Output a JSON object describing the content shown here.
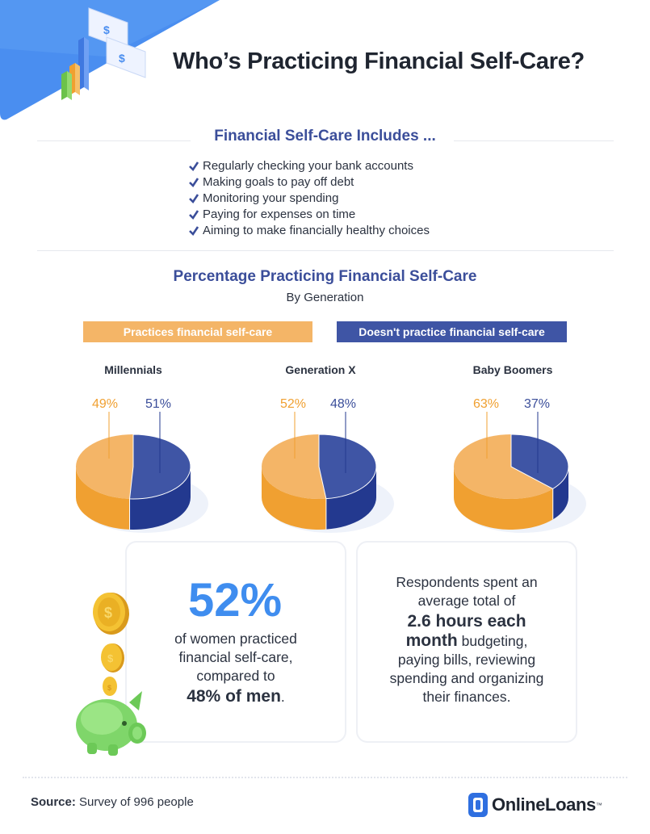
{
  "header": {
    "title": "Who’s Practicing Financial Self-Care?"
  },
  "includes": {
    "heading": "Financial Self-Care Includes ...",
    "items": [
      "Regularly checking your bank accounts",
      "Making goals to pay off debt",
      "Monitoring your spending",
      "Paying for expenses on time",
      "Aiming to make financially healthy choices"
    ]
  },
  "chart_data": {
    "type": "pie",
    "title": "Percentage Practicing Financial Self-Care",
    "subtitle": "By Generation",
    "legend": [
      {
        "name": "Practices financial self-care",
        "color": "#f4b567"
      },
      {
        "name": "Doesn't practice financial self-care",
        "color": "#3f55a5"
      }
    ],
    "charts": [
      {
        "label": "Millennials",
        "practices": 49,
        "doesnt": 51,
        "practices_label": "49%",
        "doesnt_label": "51%"
      },
      {
        "label": "Generation X",
        "practices": 52,
        "doesnt": 48,
        "practices_label": "52%",
        "doesnt_label": "48%"
      },
      {
        "label": "Baby Boomers",
        "practices": 63,
        "doesnt": 37,
        "practices_label": "63%",
        "doesnt_label": "37%"
      }
    ]
  },
  "stat_women": {
    "big": "52%",
    "line1": "of women practiced",
    "line2": "financial self-care,",
    "line3": "compared to",
    "men": "48% of men",
    "end": "."
  },
  "stat_hours": {
    "line1": "Respondents spent an",
    "line2": "average total of",
    "bold1": "2.6 hours each",
    "bold2": "month",
    "line3": " budgeting,",
    "line4": "paying bills, reviewing",
    "line5": "spending and organizing",
    "line6": "their finances."
  },
  "footer": {
    "source_label": "Source:",
    "source_text": " Survey of 996 people",
    "logo": "OnlineLoans",
    "tm": "™"
  },
  "colors": {
    "orange_top": "#f4b567",
    "orange_side": "#f0a031",
    "blue_top": "#3f55a5",
    "blue_side": "#23398f",
    "heading_blue": "#3b4e9a",
    "stat_blue": "#3f8def"
  }
}
